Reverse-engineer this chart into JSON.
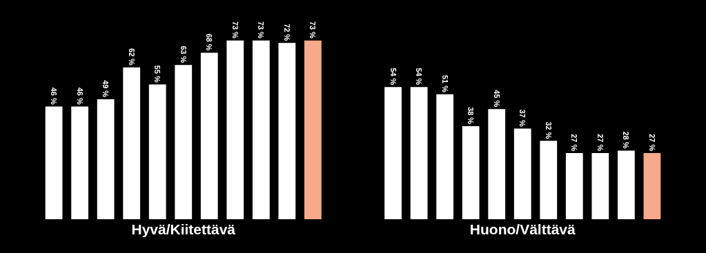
{
  "chart_data": {
    "type": "bar",
    "categories": [
      "Hyvä/Kiitettävä",
      "Huono/Välttävä"
    ],
    "tick_labels": "x",
    "grid": false,
    "legend": false,
    "series": [
      {
        "color": "#ffffff",
        "values": [
          46,
          54
        ],
        "value_labels": [
          "46 %",
          "54 %"
        ]
      },
      {
        "color": "#ffffff",
        "values": [
          46,
          54
        ],
        "value_labels": [
          "46 %",
          "54 %"
        ]
      },
      {
        "color": "#ffffff",
        "values": [
          49,
          51
        ],
        "value_labels": [
          "49 %",
          "51 %"
        ]
      },
      {
        "color": "#ffffff",
        "values": [
          62,
          38
        ],
        "value_labels": [
          "62 %",
          "38 %"
        ]
      },
      {
        "color": "#ffffff",
        "values": [
          55,
          45
        ],
        "value_labels": [
          "55 %",
          "45 %"
        ]
      },
      {
        "color": "#ffffff",
        "values": [
          63,
          37
        ],
        "value_labels": [
          "63 %",
          "37 %"
        ]
      },
      {
        "color": "#ffffff",
        "values": [
          68,
          32
        ],
        "value_labels": [
          "68 %",
          "32 %"
        ]
      },
      {
        "color": "#ffffff",
        "values": [
          73,
          27
        ],
        "value_labels": [
          "73 %",
          "27 %"
        ]
      },
      {
        "color": "#ffffff",
        "values": [
          73,
          27
        ],
        "value_labels": [
          "73 %",
          "27 %"
        ]
      },
      {
        "color": "#ffffff",
        "values": [
          72,
          28
        ],
        "value_labels": [
          "72 %",
          "28 %"
        ]
      },
      {
        "color": "#f7a98b",
        "values": [
          73,
          27
        ],
        "value_labels": [
          "73 %",
          "27 %"
        ]
      }
    ]
  }
}
